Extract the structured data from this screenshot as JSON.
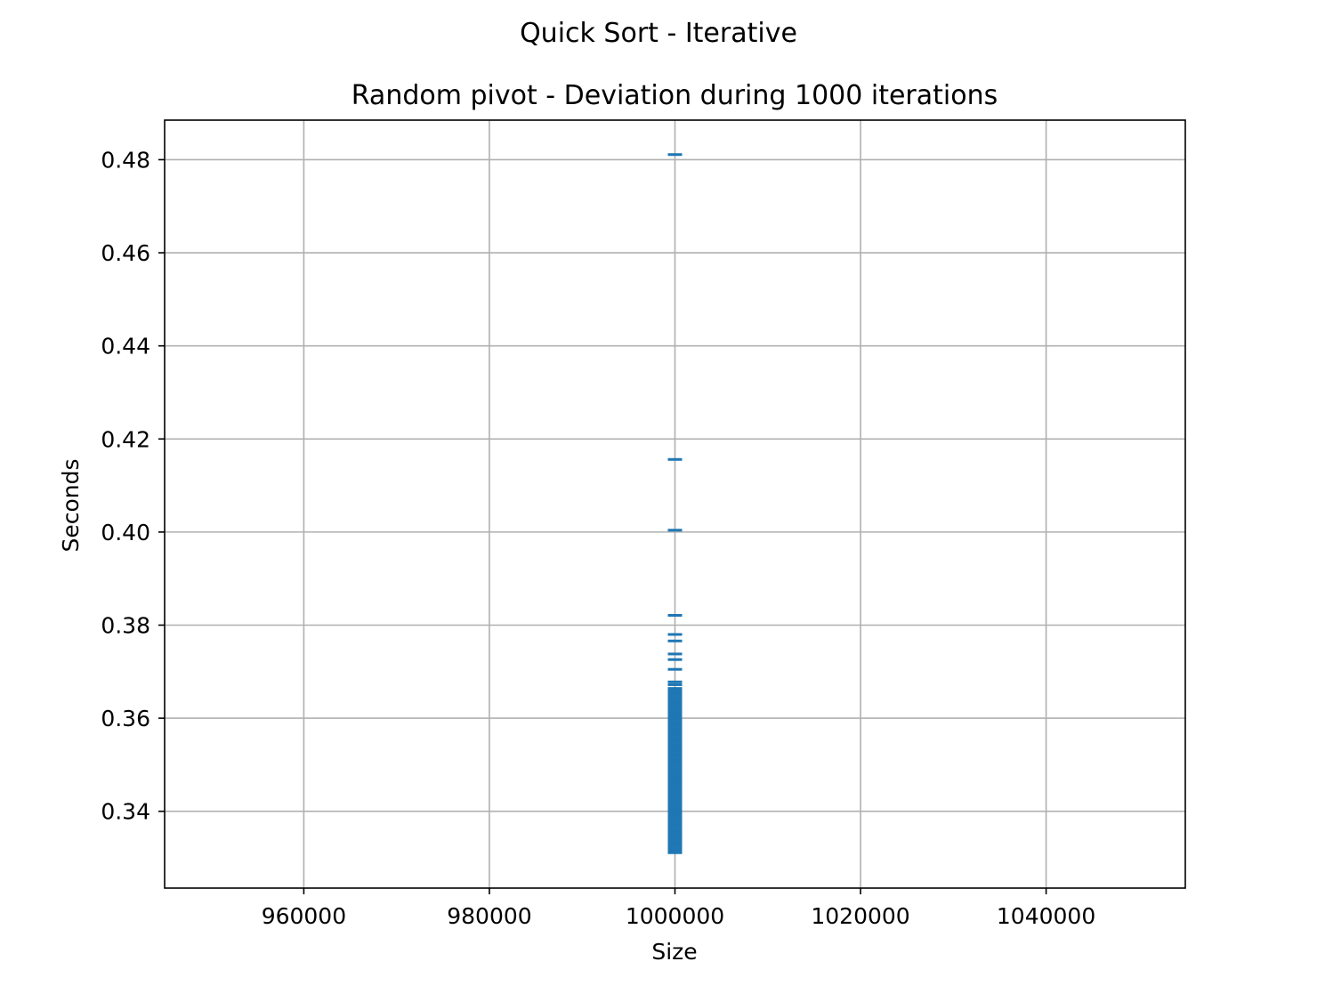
{
  "figure": {
    "suptitle": "Quick Sort - Iterative"
  },
  "chart_data": {
    "type": "scatter",
    "title": "Random pivot - Deviation during 1000 iterations",
    "xlabel": "Size",
    "ylabel": "Seconds",
    "xlim": [
      945000,
      1055000
    ],
    "ylim": [
      0.3235,
      0.4885
    ],
    "xticks": [
      960000,
      980000,
      1000000,
      1020000,
      1040000
    ],
    "xtick_labels": [
      "960000",
      "980000",
      "1000000",
      "1020000",
      "1040000"
    ],
    "yticks": [
      0.34,
      0.36,
      0.38,
      0.4,
      0.42,
      0.44,
      0.46,
      0.48
    ],
    "ytick_labels": [
      "0.34",
      "0.36",
      "0.38",
      "0.40",
      "0.42",
      "0.44",
      "0.46",
      "0.48"
    ],
    "grid": true,
    "marker": "_",
    "color": "#1f77b4",
    "series": [
      {
        "x": [
          1000000,
          1000000,
          1000000,
          1000000,
          1000000,
          1000000,
          1000000,
          1000000,
          1000000,
          1000000,
          1000000,
          1000000,
          1000000,
          1000000,
          1000000,
          1000000,
          1000000,
          1000000,
          1000000,
          1000000,
          1000000,
          1000000,
          1000000,
          1000000,
          1000000,
          1000000,
          1000000,
          1000000,
          1000000,
          1000000,
          1000000,
          1000000,
          1000000,
          1000000,
          1000000,
          1000000,
          1000000,
          1000000,
          1000000,
          1000000,
          1000000,
          1000000,
          1000000,
          1000000,
          1000000,
          1000000,
          1000000,
          1000000,
          1000000,
          1000000,
          1000000,
          1000000,
          1000000,
          1000000,
          1000000,
          1000000,
          1000000,
          1000000,
          1000000,
          1000000,
          1000000,
          1000000,
          1000000,
          1000000,
          1000000,
          1000000,
          1000000,
          1000000,
          1000000,
          1000000,
          1000000,
          1000000,
          1000000,
          1000000,
          1000000,
          1000000,
          1000000,
          1000000,
          1000000,
          1000000,
          1000000,
          1000000,
          1000000,
          1000000,
          1000000,
          1000000,
          1000000,
          1000000,
          1000000,
          1000000,
          1000000,
          1000000,
          1000000
        ],
        "y": [
          0.4811,
          0.4156,
          0.4004,
          0.3821,
          0.378,
          0.3766,
          0.3738,
          0.3726,
          0.3705,
          0.3678,
          0.3672,
          0.3664,
          0.3659,
          0.3654,
          0.3649,
          0.3644,
          0.3639,
          0.3634,
          0.3629,
          0.3624,
          0.3619,
          0.3614,
          0.3609,
          0.3604,
          0.3599,
          0.3594,
          0.3589,
          0.3584,
          0.3579,
          0.3574,
          0.3569,
          0.3564,
          0.3559,
          0.3554,
          0.3549,
          0.3544,
          0.3539,
          0.3534,
          0.3529,
          0.3524,
          0.3519,
          0.3514,
          0.3509,
          0.3504,
          0.3499,
          0.3494,
          0.3489,
          0.3484,
          0.3479,
          0.3474,
          0.3469,
          0.3464,
          0.3459,
          0.3454,
          0.3449,
          0.3444,
          0.3439,
          0.3434,
          0.3429,
          0.3424,
          0.3419,
          0.3414,
          0.3409,
          0.3404,
          0.3399,
          0.3394,
          0.3389,
          0.3384,
          0.3379,
          0.3374,
          0.3369,
          0.3364,
          0.3359,
          0.3354,
          0.3349,
          0.3344,
          0.3339,
          0.3334,
          0.3329,
          0.3324,
          0.3319,
          0.3314,
          0.3312,
          0.3311,
          0.3606,
          0.3586,
          0.3566,
          0.3546,
          0.3526,
          0.3506,
          0.3486,
          0.3466,
          0.3446
        ]
      }
    ]
  }
}
